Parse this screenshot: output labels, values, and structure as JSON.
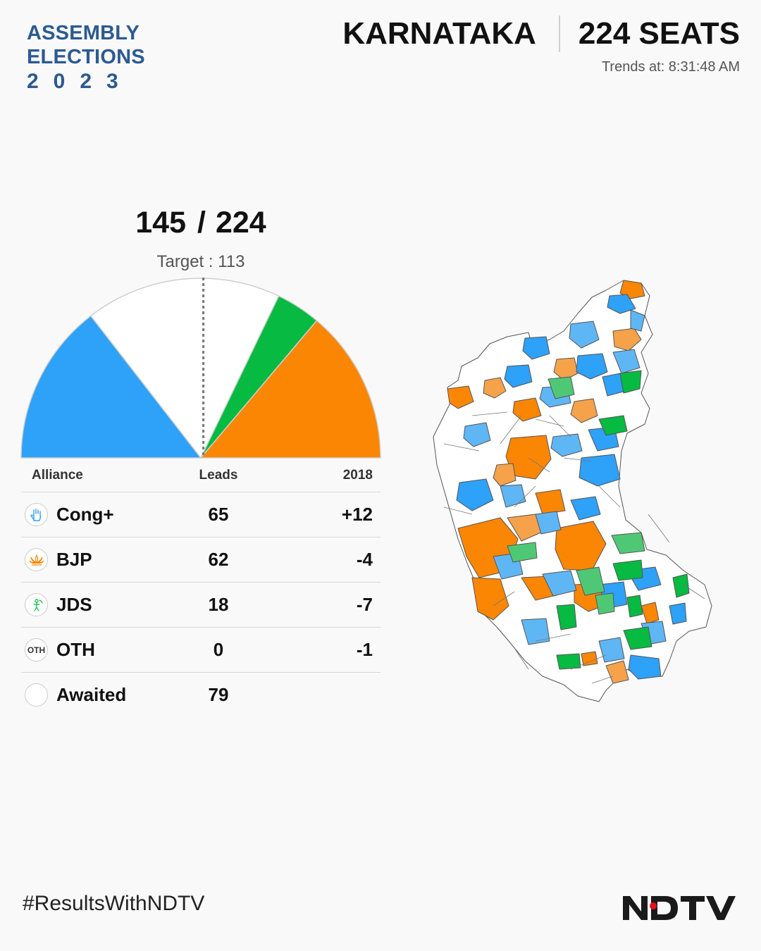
{
  "brand": {
    "line1": "ASSEMBLY",
    "line2": "ELECTIONS",
    "year": "2023"
  },
  "header": {
    "state": "KARNATAKA",
    "seats": "224 SEATS",
    "trends": "Trends at: 8:31:48 AM"
  },
  "tally": {
    "leads": "145",
    "total": "224",
    "target": "Target : 113"
  },
  "colors": {
    "cong": "#2ea1f8",
    "bjp": "#fb8603",
    "jds": "#06ba42",
    "oth": "#9e9e9e",
    "awaited": "#ffffff"
  },
  "chart_data": {
    "type": "pie",
    "subtype": "semicircle",
    "total_seats": 224,
    "majority_target": 113,
    "categories": [
      "Cong+",
      "Awaited",
      "JDS",
      "BJP"
    ],
    "values": [
      65,
      79,
      18,
      62
    ],
    "title": "",
    "legend": "none"
  },
  "table": {
    "headers": {
      "alliance": "Alliance",
      "leads": "Leads",
      "prev": "2018"
    },
    "rows": [
      {
        "name": "Cong+",
        "leads": "65",
        "change": "+12",
        "icon": "hand-symbol-icon"
      },
      {
        "name": "BJP",
        "leads": "62",
        "change": "-4",
        "icon": "lotus-symbol-icon"
      },
      {
        "name": "JDS",
        "leads": "18",
        "change": "-7",
        "icon": "farmer-symbol-icon"
      },
      {
        "name": "OTH",
        "leads": "0",
        "change": "-1",
        "icon": "oth-symbol-icon",
        "badge": "OTH"
      },
      {
        "name": "Awaited",
        "leads": "79",
        "change": "",
        "icon": "empty-symbol-icon"
      }
    ]
  },
  "map": {
    "icon": "karnataka-constituency-map"
  },
  "footer": {
    "hashtag": "#ResultsWithNDTV",
    "logo": "NDTV"
  }
}
